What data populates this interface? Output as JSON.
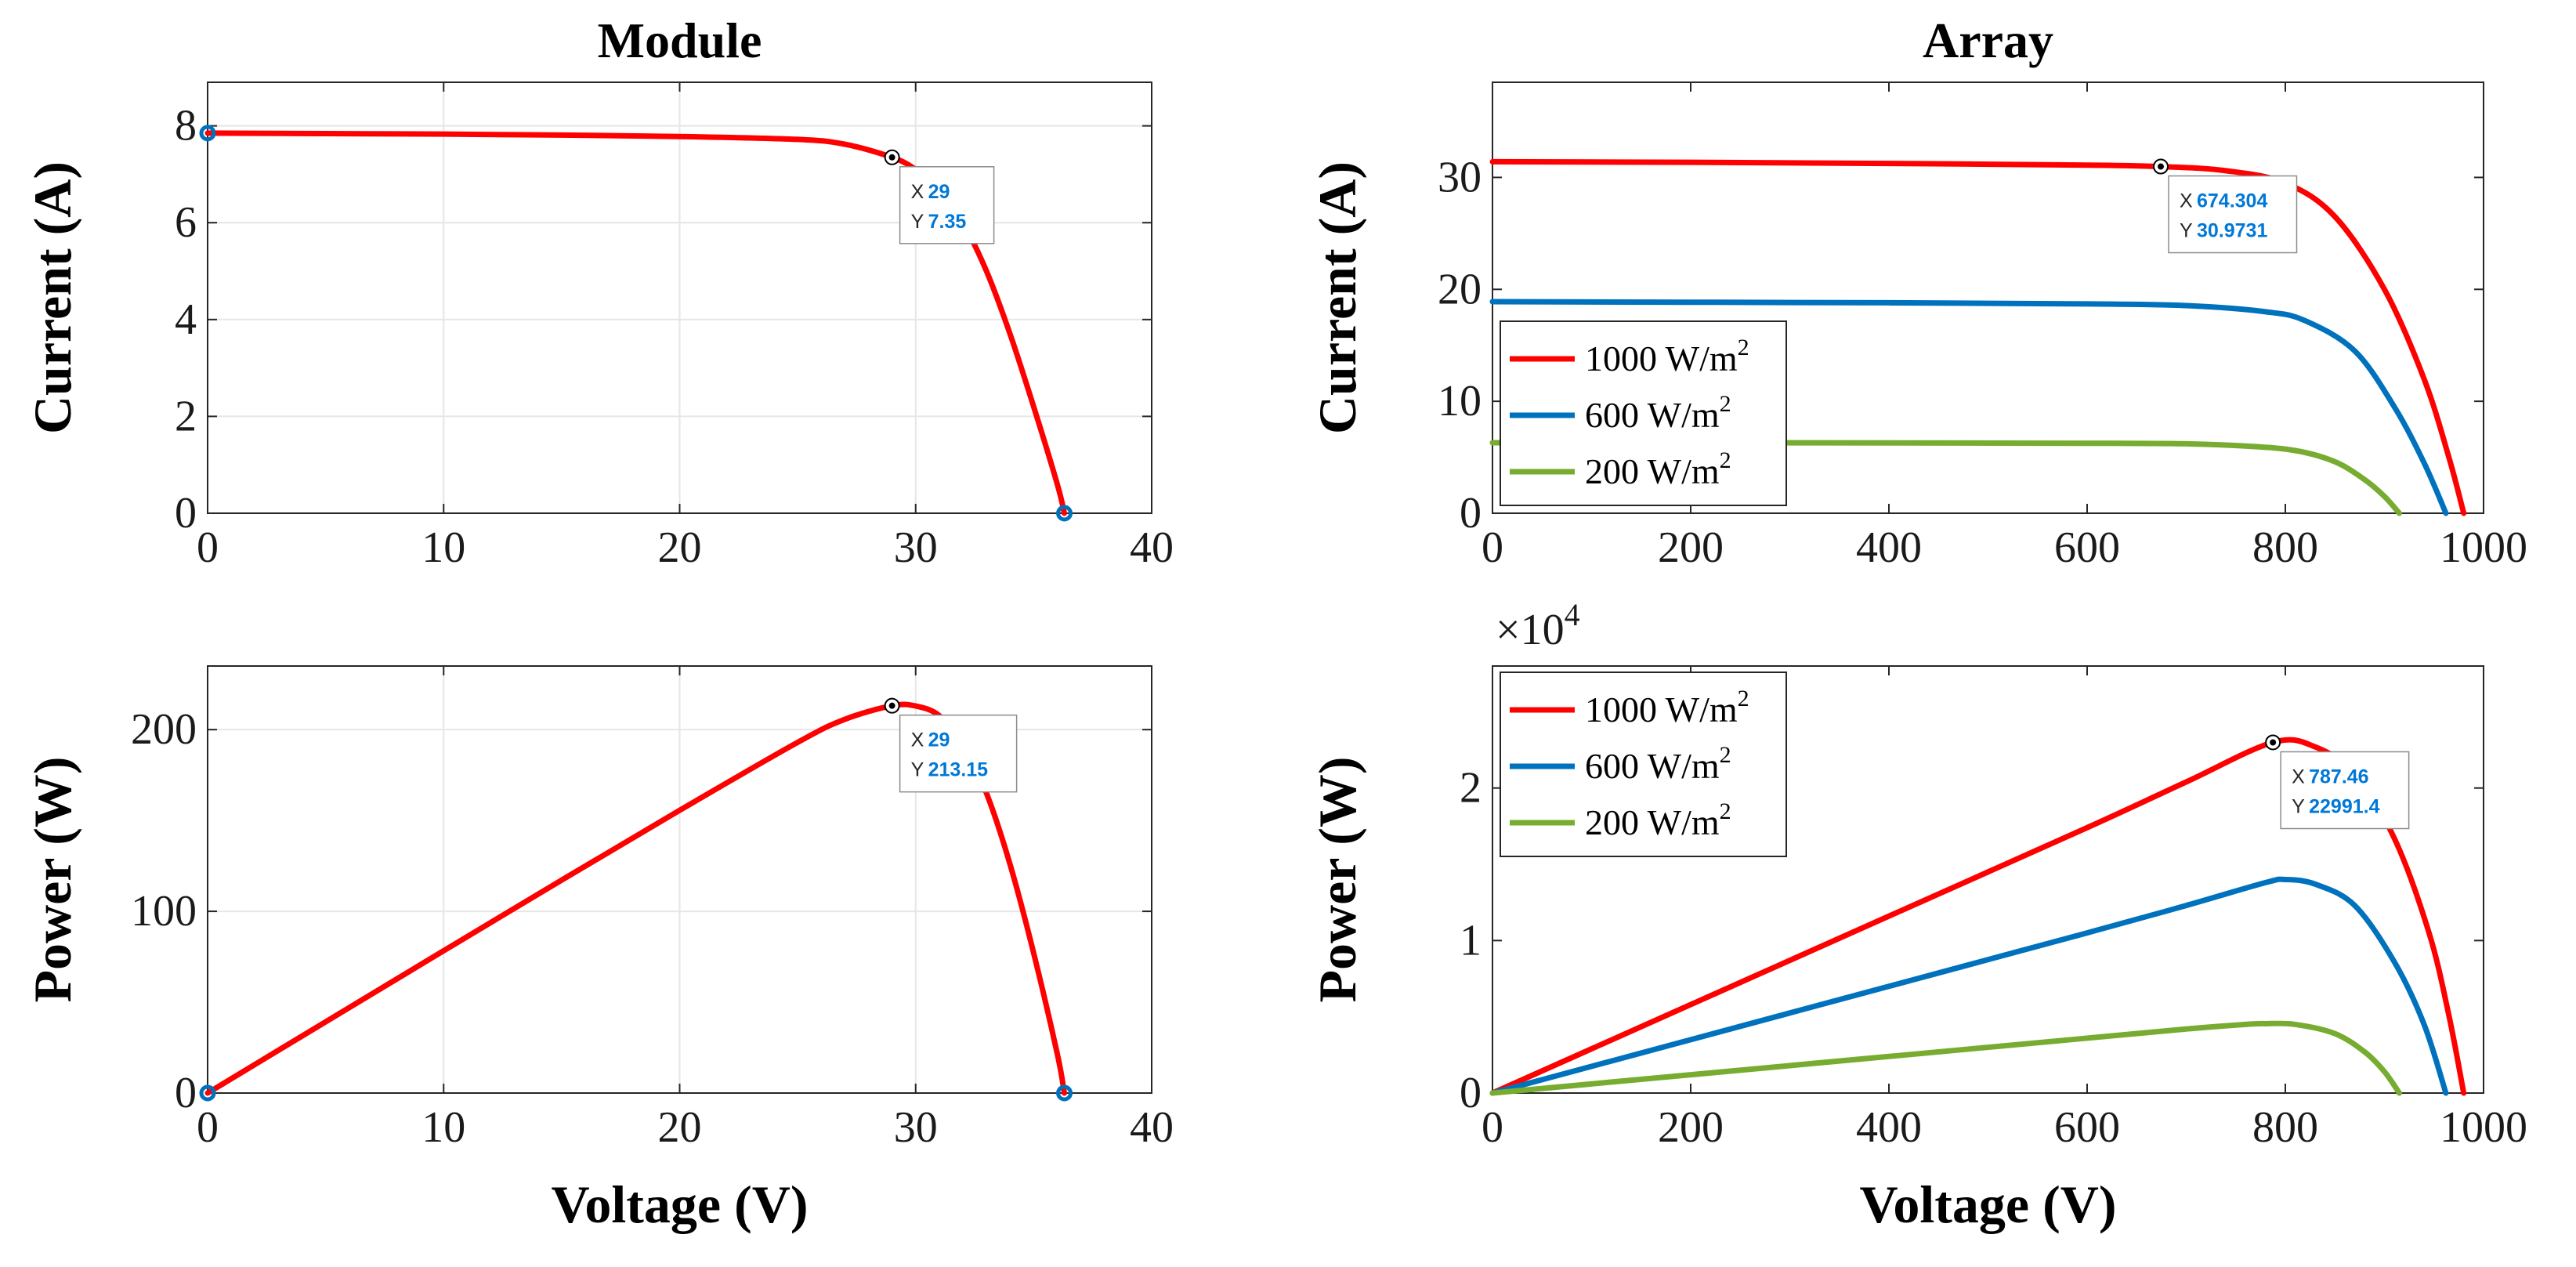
{
  "chart_data": [
    {
      "id": "module-iv",
      "type": "line",
      "title": "Module",
      "xlabel": "",
      "ylabel": "Current (A)",
      "xlim": [
        0,
        40
      ],
      "ylim": [
        0,
        8.9
      ],
      "xticks": [
        0,
        10,
        20,
        30,
        40
      ],
      "yticks": [
        0,
        2,
        4,
        6,
        8
      ],
      "grid": true,
      "series": [
        {
          "color": "#ff0000",
          "x": [
            0,
            5,
            10,
            15,
            20,
            25,
            27,
            29,
            30,
            31,
            32,
            33,
            34,
            35,
            36,
            36.3
          ],
          "y": [
            7.85,
            7.84,
            7.83,
            7.81,
            7.78,
            7.72,
            7.62,
            7.35,
            7.1,
            6.7,
            6.0,
            5.0,
            3.7,
            2.2,
            0.6,
            0
          ]
        }
      ],
      "markers": [
        {
          "x": 0,
          "y": 7.85
        },
        {
          "x": 36.3,
          "y": 0
        }
      ],
      "datatip": {
        "x": 29,
        "y": 7.35,
        "x_label": "X",
        "y_label": "Y",
        "x_text": "29",
        "y_text": "7.35"
      }
    },
    {
      "id": "array-iv",
      "type": "line",
      "title": "Array",
      "xlabel": "",
      "ylabel": "Current (A)",
      "xlim": [
        0,
        1000
      ],
      "ylim": [
        0,
        38.5
      ],
      "xticks": [
        0,
        200,
        400,
        600,
        800,
        1000
      ],
      "yticks": [
        0,
        10,
        20,
        30
      ],
      "grid": false,
      "legend": {
        "position": "bottom-left",
        "entries": [
          {
            "text": "1000 W/m",
            "sup": "2",
            "color": "#ff0000"
          },
          {
            "text": "600 W/m",
            "sup": "2",
            "color": "#0072bd"
          },
          {
            "text": "200 W/m",
            "sup": "2",
            "color": "#77ac30"
          }
        ]
      },
      "series": [
        {
          "color": "#ff0000",
          "x": [
            0,
            200,
            400,
            600,
            674.3,
            740,
            800,
            850,
            900,
            940,
            965,
            980
          ],
          "y": [
            31.4,
            31.35,
            31.25,
            31.1,
            30.97,
            30.6,
            29.5,
            26.5,
            20.0,
            12.0,
            5.0,
            0
          ]
        },
        {
          "color": "#0072bd",
          "x": [
            0,
            200,
            400,
            600,
            700,
            780,
            820,
            870,
            910,
            940,
            962
          ],
          "y": [
            18.9,
            18.85,
            18.8,
            18.7,
            18.55,
            18.0,
            17.2,
            14.5,
            9.5,
            4.5,
            0
          ]
        },
        {
          "color": "#77ac30",
          "x": [
            0,
            200,
            400,
            600,
            700,
            760,
            810,
            850,
            880,
            900,
            915
          ],
          "y": [
            6.3,
            6.3,
            6.28,
            6.25,
            6.2,
            6.0,
            5.6,
            4.6,
            3.0,
            1.5,
            0
          ]
        }
      ],
      "datatip": {
        "x": 674.304,
        "y": 30.9731,
        "x_label": "X",
        "y_label": "Y",
        "x_text": "674.304",
        "y_text": "30.9731"
      }
    },
    {
      "id": "module-pv",
      "type": "line",
      "title": "",
      "xlabel": "Voltage (V)",
      "ylabel": "Power (W)",
      "xlim": [
        0,
        40
      ],
      "ylim": [
        0,
        235
      ],
      "xticks": [
        0,
        10,
        20,
        30,
        40
      ],
      "yticks": [
        0,
        100,
        200
      ],
      "grid": true,
      "series": [
        {
          "color": "#ff0000",
          "x": [
            0,
            5,
            10,
            15,
            20,
            25,
            27,
            29,
            30,
            31,
            32,
            33,
            34,
            35,
            36,
            36.3
          ],
          "y": [
            0,
            39.2,
            78.3,
            117.2,
            155.6,
            193,
            205.7,
            213.15,
            213,
            207.7,
            192,
            165,
            125.8,
            77,
            21.6,
            0
          ]
        }
      ],
      "markers": [
        {
          "x": 0,
          "y": 0
        },
        {
          "x": 36.3,
          "y": 0
        }
      ],
      "datatip": {
        "x": 29,
        "y": 213.15,
        "x_label": "X",
        "y_label": "Y",
        "x_text": "29",
        "y_text": "213.15"
      }
    },
    {
      "id": "array-pv",
      "type": "line",
      "title": "",
      "xlabel": "Voltage (V)",
      "ylabel": "Power (W)",
      "xlim": [
        0,
        1000
      ],
      "ylim": [
        0,
        28000
      ],
      "xticks": [
        0,
        200,
        400,
        600,
        800,
        1000
      ],
      "yticks": [
        0,
        10000,
        20000
      ],
      "ytick_labels": [
        "0",
        "1",
        "2"
      ],
      "y_exponent": {
        "base": "×10",
        "power": "4"
      },
      "grid": false,
      "legend": {
        "position": "top-left",
        "entries": [
          {
            "text": "1000 W/m",
            "sup": "2",
            "color": "#ff0000"
          },
          {
            "text": "600 W/m",
            "sup": "2",
            "color": "#0072bd"
          },
          {
            "text": "200 W/m",
            "sup": "2",
            "color": "#77ac30"
          }
        ]
      },
      "series": [
        {
          "color": "#ff0000",
          "x": [
            0,
            200,
            400,
            600,
            700,
            787.46,
            830,
            870,
            910,
            945,
            965,
            980
          ],
          "y": [
            0,
            5800,
            11600,
            17400,
            20400,
            22991.4,
            22700,
            20900,
            16700,
            10500,
            5100,
            0
          ]
        },
        {
          "color": "#0072bd",
          "x": [
            0,
            200,
            400,
            600,
            700,
            780,
            800,
            830,
            870,
            910,
            940,
            962
          ],
          "y": [
            0,
            3500,
            7000,
            10500,
            12300,
            13800,
            14000,
            13700,
            12300,
            8600,
            4500,
            0
          ]
        },
        {
          "color": "#77ac30",
          "x": [
            0,
            200,
            400,
            600,
            700,
            760,
            780,
            810,
            850,
            880,
            900,
            915
          ],
          "y": [
            0,
            1200,
            2400,
            3600,
            4200,
            4500,
            4550,
            4500,
            3900,
            2700,
            1400,
            0
          ]
        }
      ],
      "datatip": {
        "x": 787.46,
        "y": 22991.4,
        "x_label": "X",
        "y_label": "Y",
        "x_text": "787.46",
        "y_text": "22991.4"
      }
    }
  ]
}
